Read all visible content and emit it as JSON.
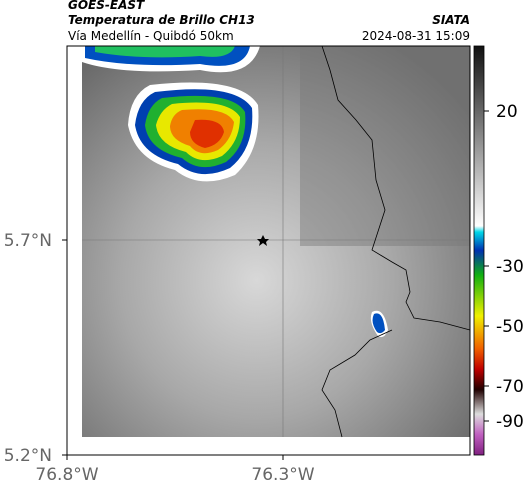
{
  "header": {
    "source": "GOES-EAST",
    "product": "Temperatura de Brillo CH13",
    "route": "Vía Medellín - Quibdó 50km",
    "org": "SIATA",
    "datetime": "2024-08-31 15:09"
  },
  "map": {
    "lat_ticks": [
      "5.7°N",
      "5.2°N"
    ],
    "lon_ticks": [
      "76.8°W",
      "76.3°W"
    ]
  },
  "colorbar": {
    "ticks": [
      20,
      -30,
      -50,
      -70,
      -90
    ]
  }
}
